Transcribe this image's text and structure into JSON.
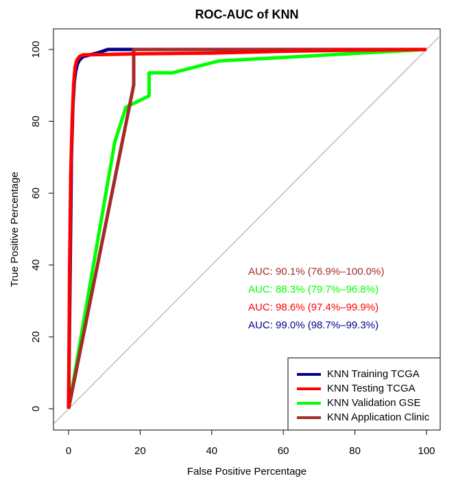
{
  "chart_data": {
    "type": "line",
    "title": "ROC-AUC of KNN",
    "xlabel": "False Positive Percentage",
    "ylabel": "True Positive Percentage",
    "xlim": [
      0,
      100
    ],
    "ylim": [
      0,
      100
    ],
    "xticks": [
      0,
      20,
      40,
      60,
      80,
      100
    ],
    "yticks": [
      0,
      20,
      40,
      60,
      80,
      100
    ],
    "grid": false,
    "reference_line": "diagonal",
    "legend_position": "bottom-right",
    "series": [
      {
        "name": "KNN Training TCGA",
        "color": "#00008B",
        "x": [
          0,
          0.4,
          0.8,
          1.2,
          1.6,
          2.0,
          2.5,
          3.0,
          4.0,
          6.0,
          8.0,
          11.0,
          15.0,
          20.0,
          40.0,
          60.0,
          80.0,
          100.0
        ],
        "y": [
          0,
          35,
          70,
          84,
          91,
          94,
          96,
          97,
          98,
          98.5,
          99,
          100,
          100,
          100,
          100,
          100,
          100,
          100
        ]
      },
      {
        "name": "KNN Testing TCGA",
        "color": "#FF0000",
        "x": [
          0,
          0.3,
          0.6,
          1.0,
          1.4,
          1.8,
          2.3,
          3.0,
          4.0,
          10.0,
          20.0,
          40.0,
          60.0,
          80.0,
          100.0
        ],
        "y": [
          0,
          40,
          65,
          80,
          90,
          95,
          97,
          98,
          98.5,
          98.6,
          98.8,
          99,
          99.5,
          99.8,
          100
        ]
      },
      {
        "name": "KNN Validation GSE",
        "color": "#00FF00",
        "x": [
          0,
          12.9,
          16.0,
          22.5,
          22.5,
          29.0,
          42.0,
          100.0
        ],
        "y": [
          0,
          74.2,
          83.9,
          87.1,
          93.5,
          93.5,
          96.8,
          100
        ]
      },
      {
        "name": "KNN Application Clinic",
        "color": "#A52A2A",
        "x": [
          0,
          18.2,
          18.2,
          100.0
        ],
        "y": [
          0,
          90.1,
          100,
          100
        ]
      }
    ],
    "annotations": [
      {
        "text": "AUC: 90.1% (76.9%–100.0%)",
        "color": "#A52A2A"
      },
      {
        "text": "AUC: 88.3% (79.7%–96.8%)",
        "color": "#00FF00"
      },
      {
        "text": "AUC: 98.6% (97.4%–99.9%)",
        "color": "#FF0000"
      },
      {
        "text": "AUC: 99.0% (98.7%–99.3%)",
        "color": "#00008B"
      }
    ]
  }
}
